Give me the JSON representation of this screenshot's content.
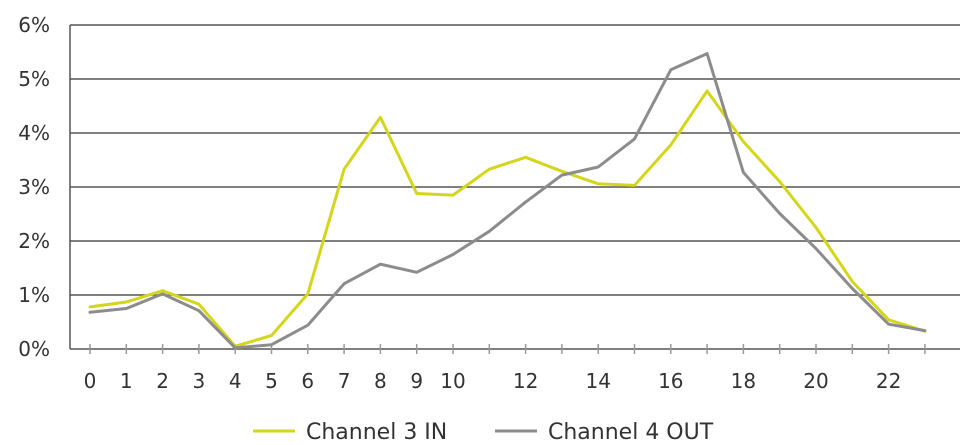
{
  "chart_data": {
    "type": "line",
    "title": "",
    "xlabel": "",
    "ylabel": "",
    "x": [
      0,
      1,
      2,
      3,
      4,
      5,
      6,
      7,
      8,
      9,
      10,
      11,
      12,
      13,
      14,
      15,
      16,
      17,
      18,
      19,
      20,
      21,
      22,
      23
    ],
    "x_ticks": [
      "0",
      "1",
      "2",
      "3",
      "4",
      "5",
      "6",
      "7",
      "8",
      "9",
      "10",
      "12",
      "14",
      "16",
      "18",
      "20",
      "22"
    ],
    "x_tick_values": [
      0,
      1,
      2,
      3,
      4,
      5,
      6,
      7,
      8,
      9,
      10,
      12,
      14,
      16,
      18,
      20,
      22
    ],
    "xlim": [
      0,
      23
    ],
    "ylim": [
      0,
      6
    ],
    "y_ticks": [
      "0%",
      "1%",
      "2%",
      "3%",
      "4%",
      "5%",
      "6%"
    ],
    "y_tick_values": [
      0,
      1,
      2,
      3,
      4,
      5,
      6
    ],
    "grid": "horizontal",
    "legend_position": "bottom-center",
    "series": [
      {
        "name": "Channel 3 IN",
        "color": "#d4d61c",
        "values": [
          0.78,
          0.87,
          1.08,
          0.83,
          0.05,
          0.25,
          1.02,
          3.33,
          4.29,
          2.88,
          2.85,
          3.33,
          3.55,
          3.29,
          3.06,
          3.03,
          3.78,
          4.78,
          3.84,
          3.1,
          2.25,
          1.25,
          0.54,
          0.33
        ]
      },
      {
        "name": "Channel 4 OUT",
        "color": "#8c8c8c",
        "values": [
          0.68,
          0.75,
          1.02,
          0.71,
          0.02,
          0.08,
          0.44,
          1.21,
          1.57,
          1.42,
          1.75,
          2.18,
          2.72,
          3.22,
          3.37,
          3.89,
          5.17,
          5.47,
          3.27,
          2.51,
          1.86,
          1.12,
          0.46,
          0.34
        ]
      }
    ]
  }
}
